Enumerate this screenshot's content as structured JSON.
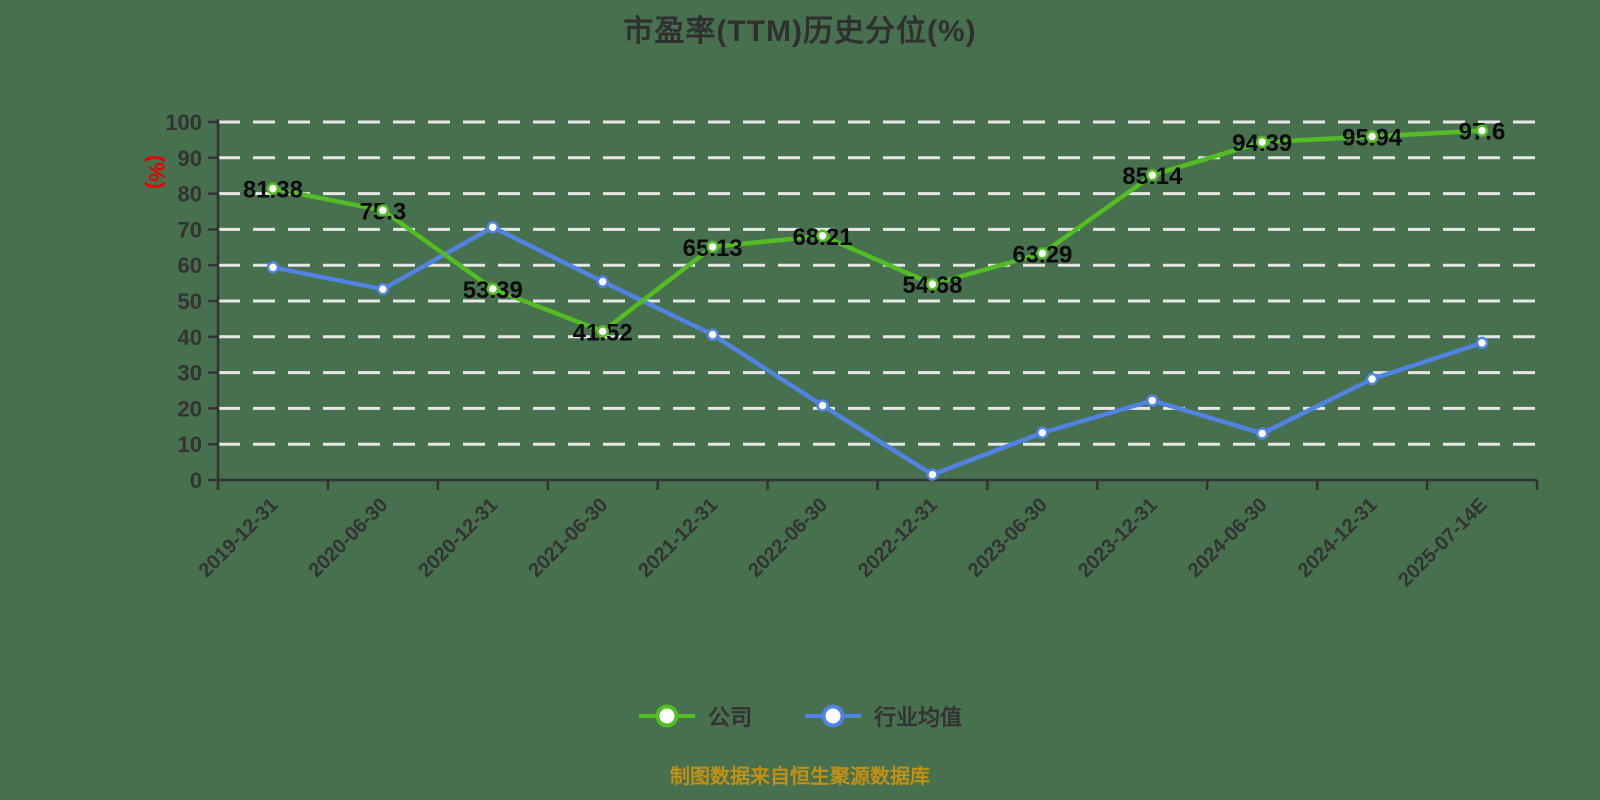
{
  "page": {
    "background_color": "#47704E"
  },
  "chart_data": {
    "type": "line",
    "title": "市盈率(TTM)历史分位(%)",
    "y_axis_name": "(%)",
    "y_axis_name_color": "#E60000",
    "ylim": [
      0,
      100
    ],
    "y_tick_step": 10,
    "y_tick_labels": [
      "0",
      "10",
      "20",
      "30",
      "40",
      "50",
      "60",
      "70",
      "80",
      "90",
      "100"
    ],
    "grid": "horizontal white dashed lines",
    "legend_position": "bottom-center",
    "categories": [
      "2019-12-31",
      "2020-06-30",
      "2020-12-31",
      "2021-06-30",
      "2021-12-31",
      "2022-06-30",
      "2022-12-31",
      "2023-06-30",
      "2023-12-31",
      "2024-06-30",
      "2024-12-31",
      "2025-07-14E"
    ],
    "series": [
      {
        "name": "公司",
        "color": "#53BD23",
        "values": [
          81.38,
          75.3,
          53.39,
          41.52,
          65.13,
          68.21,
          54.68,
          63.29,
          85.14,
          94.39,
          95.94,
          97.6
        ],
        "point_labels": [
          "81.38",
          "75.3",
          "53.39",
          "41.52",
          "65.13",
          "68.21",
          "54.68",
          "63.29",
          "85.14",
          "94.39",
          "95.94",
          "97.6"
        ]
      },
      {
        "name": "行业均值",
        "color": "#5183E3",
        "values": [
          59.4,
          53.3,
          70.6,
          55.4,
          40.6,
          20.8,
          1.5,
          13.2,
          22.2,
          13.0,
          28.2,
          38.3
        ],
        "point_labels": []
      }
    ]
  },
  "caption": {
    "text": "制图数据来自恒生聚源数据库",
    "color": "#C29114"
  }
}
